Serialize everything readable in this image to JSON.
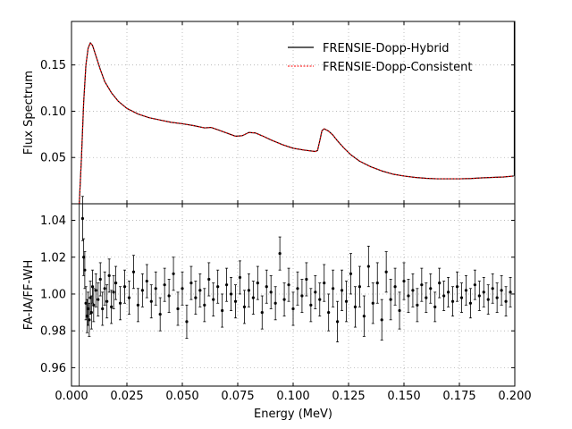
{
  "chart_data": [
    {
      "type": "line",
      "panel": "top",
      "ylabel": "Flux Spectrum",
      "xlim": [
        0.0,
        0.2
      ],
      "ylim": [
        0.0,
        0.197
      ],
      "grid": true,
      "legend_placement": "top-right",
      "yticks": [
        0.05,
        0.1,
        0.15
      ],
      "ytick_labels": [
        "0.05",
        "0.10",
        "0.15"
      ],
      "legend": [
        {
          "label": "FRENSIE-Dopp-Hybrid",
          "color": "#000000",
          "style": "solid"
        },
        {
          "label": "FRENSIE-Dopp-Consistent",
          "color": "#ff0000",
          "style": "dashed"
        }
      ],
      "series": [
        {
          "name": "FRENSIE-Dopp-Hybrid",
          "color": "#000000",
          "x": [
            0.0035,
            0.0045,
            0.0055,
            0.0065,
            0.0075,
            0.0085,
            0.0095,
            0.011,
            0.013,
            0.015,
            0.018,
            0.021,
            0.025,
            0.03,
            0.035,
            0.04,
            0.045,
            0.05,
            0.055,
            0.06,
            0.063,
            0.066,
            0.07,
            0.074,
            0.077,
            0.08,
            0.083,
            0.086,
            0.09,
            0.095,
            0.1,
            0.105,
            0.11,
            0.111,
            0.112,
            0.113,
            0.114,
            0.116,
            0.118,
            0.12,
            0.123,
            0.126,
            0.13,
            0.135,
            0.14,
            0.145,
            0.15,
            0.155,
            0.16,
            0.165,
            0.17,
            0.175,
            0.18,
            0.185,
            0.19,
            0.195,
            0.1995
          ],
          "values": [
            0.0,
            0.05,
            0.11,
            0.15,
            0.168,
            0.174,
            0.171,
            0.16,
            0.145,
            0.132,
            0.12,
            0.111,
            0.103,
            0.097,
            0.093,
            0.0905,
            0.088,
            0.0865,
            0.0845,
            0.082,
            0.0825,
            0.08,
            0.0765,
            0.073,
            0.0735,
            0.077,
            0.0765,
            0.0735,
            0.069,
            0.064,
            0.06,
            0.058,
            0.0565,
            0.0575,
            0.068,
            0.079,
            0.081,
            0.0785,
            0.074,
            0.068,
            0.06,
            0.053,
            0.046,
            0.04,
            0.0355,
            0.032,
            0.03,
            0.0285,
            0.0275,
            0.027,
            0.027,
            0.027,
            0.0273,
            0.028,
            0.0285,
            0.029,
            0.03
          ]
        },
        {
          "name": "FRENSIE-Dopp-Consistent",
          "color": "#ff0000",
          "x": [
            0.0035,
            0.0045,
            0.0055,
            0.0065,
            0.0075,
            0.0085,
            0.0095,
            0.011,
            0.013,
            0.015,
            0.018,
            0.021,
            0.025,
            0.03,
            0.035,
            0.04,
            0.045,
            0.05,
            0.055,
            0.06,
            0.063,
            0.066,
            0.07,
            0.074,
            0.077,
            0.08,
            0.083,
            0.086,
            0.09,
            0.095,
            0.1,
            0.105,
            0.11,
            0.111,
            0.112,
            0.113,
            0.114,
            0.116,
            0.118,
            0.12,
            0.123,
            0.126,
            0.13,
            0.135,
            0.14,
            0.145,
            0.15,
            0.155,
            0.16,
            0.165,
            0.17,
            0.175,
            0.18,
            0.185,
            0.19,
            0.195,
            0.1995
          ],
          "values": [
            0.0,
            0.05,
            0.11,
            0.15,
            0.168,
            0.174,
            0.171,
            0.16,
            0.145,
            0.132,
            0.12,
            0.111,
            0.103,
            0.097,
            0.093,
            0.0905,
            0.088,
            0.0865,
            0.0845,
            0.082,
            0.0825,
            0.08,
            0.0765,
            0.073,
            0.0735,
            0.077,
            0.0765,
            0.0735,
            0.069,
            0.064,
            0.06,
            0.058,
            0.0565,
            0.0575,
            0.068,
            0.079,
            0.081,
            0.0785,
            0.074,
            0.068,
            0.06,
            0.053,
            0.046,
            0.04,
            0.0355,
            0.032,
            0.03,
            0.0285,
            0.0275,
            0.027,
            0.027,
            0.027,
            0.0273,
            0.028,
            0.0285,
            0.029,
            0.03
          ]
        }
      ]
    },
    {
      "type": "scatter",
      "panel": "bottom",
      "xlabel": "Energy (MeV)",
      "ylabel": "FA-IA/FF-WH",
      "xlim": [
        0.0,
        0.2
      ],
      "ylim": [
        0.95,
        1.049
      ],
      "grid": true,
      "xticks": [
        0.0,
        0.025,
        0.05,
        0.075,
        0.1,
        0.125,
        0.15,
        0.175,
        0.2
      ],
      "xtick_labels": [
        "0.000",
        "0.025",
        "0.050",
        "0.075",
        "0.100",
        "0.125",
        "0.150",
        "0.175",
        "0.200"
      ],
      "yticks": [
        0.96,
        0.98,
        1.0,
        1.02,
        1.04
      ],
      "ytick_labels": [
        "0.96",
        "0.98",
        "1.00",
        "1.02",
        "1.04"
      ],
      "series": [
        {
          "color": "#000000",
          "error_bars": true,
          "x": [
            0.005,
            0.0055,
            0.006,
            0.0065,
            0.007,
            0.0075,
            0.008,
            0.0085,
            0.009,
            0.0095,
            0.01,
            0.011,
            0.012,
            0.013,
            0.014,
            0.015,
            0.016,
            0.017,
            0.018,
            0.019,
            0.02,
            0.022,
            0.024,
            0.026,
            0.028,
            0.03,
            0.032,
            0.034,
            0.036,
            0.038,
            0.04,
            0.042,
            0.044,
            0.046,
            0.048,
            0.05,
            0.052,
            0.054,
            0.056,
            0.058,
            0.06,
            0.062,
            0.064,
            0.066,
            0.068,
            0.07,
            0.072,
            0.074,
            0.076,
            0.078,
            0.08,
            0.082,
            0.084,
            0.086,
            0.088,
            0.09,
            0.092,
            0.094,
            0.096,
            0.098,
            0.1,
            0.102,
            0.104,
            0.106,
            0.108,
            0.11,
            0.112,
            0.114,
            0.116,
            0.118,
            0.12,
            0.122,
            0.124,
            0.126,
            0.128,
            0.13,
            0.132,
            0.134,
            0.136,
            0.138,
            0.14,
            0.142,
            0.144,
            0.146,
            0.148,
            0.15,
            0.152,
            0.154,
            0.156,
            0.158,
            0.16,
            0.162,
            0.164,
            0.166,
            0.168,
            0.17,
            0.172,
            0.174,
            0.176,
            0.178,
            0.18,
            0.182,
            0.184,
            0.186,
            0.188,
            0.19,
            0.192,
            0.194,
            0.196,
            0.198
          ],
          "values": [
            1.041,
            1.02,
            1.013,
            0.995,
            0.988,
            0.992,
            0.986,
            0.998,
            0.99,
            1.004,
            0.994,
            1.002,
            0.997,
            1.008,
            0.992,
            1.003,
            0.996,
            1.01,
            0.993,
            1.001,
            1.006,
            0.995,
            1.004,
            0.998,
            1.012,
            0.994,
            1.002,
            1.007,
            0.996,
            1.003,
            0.989,
            1.005,
            0.999,
            1.011,
            0.992,
            1.003,
            0.985,
            1.006,
            0.998,
            1.002,
            0.994,
            1.008,
            0.997,
            1.004,
            0.991,
            1.005,
            1.0,
            0.996,
            1.009,
            0.993,
            1.002,
            0.998,
            1.006,
            0.99,
            1.004,
            1.001,
            0.995,
            1.022,
            0.997,
            1.005,
            0.992,
            1.003,
            0.999,
            1.008,
            0.994,
            1.001,
            0.997,
            1.006,
            0.99,
            1.003,
            0.985,
            1.002,
            0.996,
            1.011,
            0.993,
            1.004,
            0.988,
            1.015,
            0.995,
            1.006,
            0.986,
            1.012,
            0.997,
            1.004,
            0.991,
            1.007,
            0.999,
            1.002,
            0.994,
            1.005,
            0.998,
            1.003,
            0.993,
            1.006,
            0.999,
            1.001,
            0.996,
            1.004,
            0.998,
            1.002,
            0.995,
            1.005,
            0.999,
            1.001,
            0.997,
            1.003,
            0.998,
            1.002,
            0.996,
            1.001
          ],
          "errors": [
            0.012,
            0.01,
            0.01,
            0.009,
            0.009,
            0.009,
            0.009,
            0.009,
            0.009,
            0.009,
            0.009,
            0.009,
            0.009,
            0.009,
            0.009,
            0.009,
            0.009,
            0.009,
            0.009,
            0.009,
            0.009,
            0.009,
            0.009,
            0.009,
            0.009,
            0.009,
            0.009,
            0.009,
            0.009,
            0.009,
            0.009,
            0.009,
            0.009,
            0.009,
            0.009,
            0.009,
            0.009,
            0.009,
            0.009,
            0.009,
            0.009,
            0.009,
            0.009,
            0.009,
            0.009,
            0.009,
            0.009,
            0.009,
            0.009,
            0.009,
            0.009,
            0.009,
            0.009,
            0.009,
            0.009,
            0.009,
            0.009,
            0.009,
            0.009,
            0.009,
            0.009,
            0.009,
            0.009,
            0.009,
            0.009,
            0.009,
            0.009,
            0.01,
            0.01,
            0.01,
            0.011,
            0.011,
            0.011,
            0.011,
            0.011,
            0.011,
            0.011,
            0.011,
            0.011,
            0.011,
            0.011,
            0.011,
            0.011,
            0.01,
            0.01,
            0.01,
            0.009,
            0.009,
            0.009,
            0.009,
            0.008,
            0.008,
            0.008,
            0.008,
            0.008,
            0.008,
            0.008,
            0.008,
            0.008,
            0.008,
            0.008,
            0.008,
            0.008,
            0.008,
            0.008,
            0.008,
            0.008,
            0.008,
            0.008,
            0.008
          ]
        }
      ]
    }
  ]
}
